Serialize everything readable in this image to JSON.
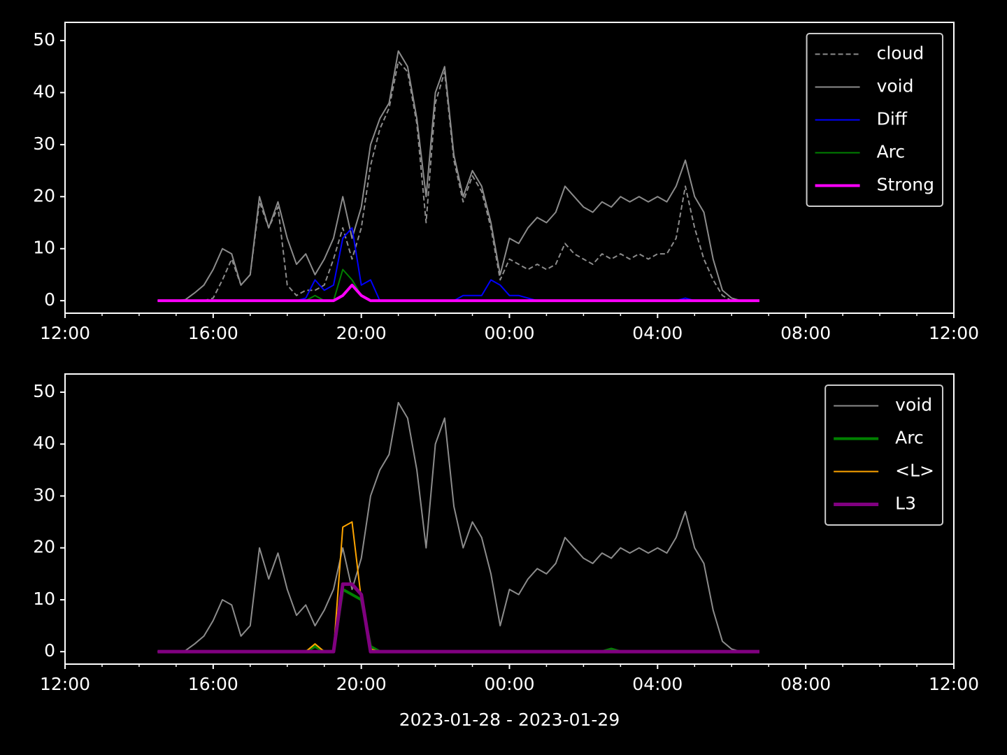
{
  "chart_data": [
    {
      "type": "line",
      "legend": "upper right",
      "xlim": [
        12,
        36
      ],
      "ylim": [
        -2.4,
        53.5
      ],
      "xticks": [
        {
          "value": 12,
          "label": "12:00"
        },
        {
          "value": 16,
          "label": "16:00"
        },
        {
          "value": 20,
          "label": "20:00"
        },
        {
          "value": 24,
          "label": "00:00"
        },
        {
          "value": 28,
          "label": "04:00"
        },
        {
          "value": 32,
          "label": "08:00"
        },
        {
          "value": 36,
          "label": "12:00"
        }
      ],
      "xminorticks": [
        13,
        14,
        15,
        17,
        18,
        19,
        21,
        22,
        23,
        25,
        26,
        27,
        29,
        30,
        31,
        33,
        34,
        35
      ],
      "yticks": [
        0,
        10,
        20,
        30,
        40,
        50
      ],
      "x": [
        14.5,
        14.75,
        15,
        15.25,
        15.5,
        15.75,
        16,
        16.25,
        16.5,
        16.75,
        17,
        17.25,
        17.5,
        17.75,
        18,
        18.25,
        18.5,
        18.75,
        19,
        19.25,
        19.5,
        19.75,
        20,
        20.25,
        20.5,
        20.75,
        21,
        21.25,
        21.5,
        21.75,
        22,
        22.25,
        22.5,
        22.75,
        23,
        23.25,
        23.5,
        23.75,
        24,
        24.25,
        24.5,
        24.75,
        25,
        25.25,
        25.5,
        25.75,
        26,
        26.25,
        26.5,
        26.75,
        27,
        27.25,
        27.5,
        27.75,
        28,
        28.25,
        28.5,
        28.75,
        29,
        29.25,
        29.5,
        29.75,
        30,
        30.25,
        30.5,
        30.75
      ],
      "series": [
        {
          "name": "cloud",
          "color": "#8c8c8c",
          "linestyle": "dashed",
          "linewidth": 2,
          "values": [
            0,
            0,
            0,
            0,
            0,
            0,
            0.5,
            4,
            8,
            3,
            5,
            19,
            14,
            18,
            3,
            1,
            2,
            2,
            3,
            8,
            14,
            8,
            14,
            26,
            33,
            37,
            46,
            44,
            34,
            15,
            38,
            44,
            27,
            19,
            24,
            21,
            14,
            4,
            8,
            7,
            6,
            7,
            6,
            7,
            11,
            9,
            8,
            7,
            9,
            8,
            9,
            8,
            9,
            8,
            9,
            9,
            12,
            22,
            14,
            8,
            4,
            1,
            0,
            0,
            0,
            0
          ]
        },
        {
          "name": "void",
          "color": "#8c8c8c",
          "linestyle": "solid",
          "linewidth": 2,
          "values": [
            0,
            0,
            0,
            0.2,
            1.5,
            3,
            6,
            10,
            9,
            3,
            5,
            20,
            14,
            19,
            12,
            7,
            9,
            5,
            8,
            12,
            20,
            12,
            18,
            30,
            35,
            38,
            48,
            45,
            35,
            20,
            40,
            45,
            28,
            20,
            25,
            22,
            15,
            5,
            12,
            11,
            14,
            16,
            15,
            17,
            22,
            20,
            18,
            17,
            19,
            18,
            20,
            19,
            20,
            19,
            20,
            19,
            22,
            27,
            20,
            17,
            8,
            2,
            0.5,
            0,
            0,
            0
          ]
        },
        {
          "name": "Diff",
          "color": "#0000ff",
          "linestyle": "solid",
          "linewidth": 2,
          "values": [
            0,
            0,
            0,
            0,
            0,
            0,
            0,
            0,
            0,
            0,
            0,
            0,
            0,
            0,
            0,
            0,
            0.5,
            4,
            2,
            3,
            12,
            14,
            3,
            4,
            0,
            0,
            0,
            0,
            0,
            0,
            0,
            0,
            0,
            1,
            1,
            1,
            4,
            3,
            1,
            1,
            0.5,
            0,
            0,
            0,
            0,
            0,
            0,
            0,
            0,
            0,
            0,
            0,
            0,
            0,
            0,
            0,
            0,
            0.5,
            0,
            0,
            0,
            0,
            0,
            0,
            0,
            0
          ]
        },
        {
          "name": "Arc",
          "color": "#008000",
          "linestyle": "solid",
          "linewidth": 2,
          "values": [
            0,
            0,
            0,
            0,
            0,
            0,
            0,
            0,
            0,
            0,
            0,
            0,
            0,
            0,
            0,
            0,
            0,
            1,
            0,
            0,
            6,
            4,
            1,
            0,
            0,
            0,
            0,
            0,
            0,
            0,
            0,
            0,
            0,
            0,
            0,
            0,
            0,
            0,
            0,
            0,
            0,
            0,
            0,
            0,
            0,
            0,
            0,
            0,
            0,
            0,
            0,
            0,
            0,
            0,
            0,
            0,
            0,
            0,
            0,
            0,
            0,
            0,
            0,
            0,
            0,
            0
          ]
        },
        {
          "name": "Strong",
          "color": "#ff00ff",
          "linestyle": "solid",
          "linewidth": 4,
          "values": [
            0,
            0,
            0,
            0,
            0,
            0,
            0,
            0,
            0,
            0,
            0,
            0,
            0,
            0,
            0,
            0,
            0,
            0,
            0,
            0,
            1,
            3,
            1,
            0,
            0,
            0,
            0,
            0,
            0,
            0,
            0,
            0,
            0,
            0,
            0,
            0,
            0,
            0,
            0,
            0,
            0,
            0,
            0,
            0,
            0,
            0,
            0,
            0,
            0,
            0,
            0,
            0,
            0,
            0,
            0,
            0,
            0,
            0,
            0,
            0,
            0,
            0,
            0,
            0,
            0,
            0
          ]
        }
      ]
    },
    {
      "type": "line",
      "legend": "upper right",
      "xlabel": "2023-01-28 - 2023-01-29",
      "xlim": [
        12,
        36
      ],
      "ylim": [
        -2.4,
        53.5
      ],
      "xticks": [
        {
          "value": 12,
          "label": "12:00"
        },
        {
          "value": 16,
          "label": "16:00"
        },
        {
          "value": 20,
          "label": "20:00"
        },
        {
          "value": 24,
          "label": "00:00"
        },
        {
          "value": 28,
          "label": "04:00"
        },
        {
          "value": 32,
          "label": "08:00"
        },
        {
          "value": 36,
          "label": "12:00"
        }
      ],
      "xminorticks": [
        13,
        14,
        15,
        17,
        18,
        19,
        21,
        22,
        23,
        25,
        26,
        27,
        29,
        30,
        31,
        33,
        34,
        35
      ],
      "yticks": [
        0,
        10,
        20,
        30,
        40,
        50
      ],
      "x": [
        14.5,
        14.75,
        15,
        15.25,
        15.5,
        15.75,
        16,
        16.25,
        16.5,
        16.75,
        17,
        17.25,
        17.5,
        17.75,
        18,
        18.25,
        18.5,
        18.75,
        19,
        19.25,
        19.5,
        19.75,
        20,
        20.25,
        20.5,
        20.75,
        21,
        21.25,
        21.5,
        21.75,
        22,
        22.25,
        22.5,
        22.75,
        23,
        23.25,
        23.5,
        23.75,
        24,
        24.25,
        24.5,
        24.75,
        25,
        25.25,
        25.5,
        25.75,
        26,
        26.25,
        26.5,
        26.75,
        27,
        27.25,
        27.5,
        27.75,
        28,
        28.25,
        28.5,
        28.75,
        29,
        29.25,
        29.5,
        29.75,
        30,
        30.25,
        30.5,
        30.75
      ],
      "series": [
        {
          "name": "void",
          "color": "#8c8c8c",
          "linestyle": "solid",
          "linewidth": 2,
          "values": [
            0,
            0,
            0,
            0.2,
            1.5,
            3,
            6,
            10,
            9,
            3,
            5,
            20,
            14,
            19,
            12,
            7,
            9,
            5,
            8,
            12,
            20,
            12,
            18,
            30,
            35,
            38,
            48,
            45,
            35,
            20,
            40,
            45,
            28,
            20,
            25,
            22,
            15,
            5,
            12,
            11,
            14,
            16,
            15,
            17,
            22,
            20,
            18,
            17,
            19,
            18,
            20,
            19,
            20,
            19,
            20,
            19,
            22,
            27,
            20,
            17,
            8,
            2,
            0.5,
            0,
            0,
            0
          ]
        },
        {
          "name": "Arc",
          "color": "#008000",
          "linestyle": "solid",
          "linewidth": 4,
          "values": [
            0,
            0,
            0,
            0,
            0,
            0,
            0,
            0,
            0,
            0,
            0,
            0,
            0,
            0,
            0,
            0,
            0,
            1,
            0,
            0,
            12,
            11,
            10,
            1,
            0,
            0,
            0,
            0,
            0,
            0,
            0,
            0,
            0,
            0,
            0,
            0,
            0,
            0,
            0,
            0,
            0,
            0,
            0,
            0,
            0,
            0,
            0,
            0,
            0,
            0.5,
            0,
            0,
            0,
            0,
            0,
            0,
            0,
            0,
            0,
            0,
            0,
            0,
            0,
            0,
            0,
            0
          ]
        },
        {
          "name": "<L>",
          "color": "#ffa500",
          "linestyle": "solid",
          "linewidth": 2,
          "values": [
            0,
            0,
            0,
            0,
            0,
            0,
            0,
            0,
            0,
            0,
            0,
            0,
            0,
            0,
            0,
            0,
            0,
            1.5,
            0,
            0,
            24,
            25,
            10,
            0.5,
            0,
            0,
            0,
            0,
            0,
            0,
            0,
            0,
            0,
            0,
            0,
            0,
            0,
            0,
            0,
            0,
            0,
            0,
            0,
            0,
            0,
            0,
            0,
            0,
            0,
            0,
            0,
            0,
            0,
            0,
            0,
            0,
            0,
            0,
            0,
            0,
            0,
            0,
            0,
            0,
            0,
            0
          ]
        },
        {
          "name": "L3",
          "color": "#800080",
          "linestyle": "solid",
          "linewidth": 5,
          "values": [
            0,
            0,
            0,
            0,
            0,
            0,
            0,
            0,
            0,
            0,
            0,
            0,
            0,
            0,
            0,
            0,
            0,
            0,
            0,
            0,
            13,
            13,
            11,
            0,
            0,
            0,
            0,
            0,
            0,
            0,
            0,
            0,
            0,
            0,
            0,
            0,
            0,
            0,
            0,
            0,
            0,
            0,
            0,
            0,
            0,
            0,
            0,
            0,
            0,
            0,
            0,
            0,
            0,
            0,
            0,
            0,
            0,
            0,
            0,
            0,
            0,
            0,
            0,
            0,
            0,
            0
          ]
        }
      ]
    }
  ]
}
